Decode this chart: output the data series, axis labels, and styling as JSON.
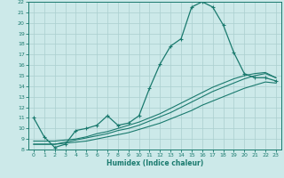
{
  "xlabel": "Humidex (Indice chaleur)",
  "xlim": [
    -0.5,
    23.5
  ],
  "ylim": [
    8,
    22
  ],
  "yticks": [
    8,
    9,
    10,
    11,
    12,
    13,
    14,
    15,
    16,
    17,
    18,
    19,
    20,
    21,
    22
  ],
  "xticks": [
    0,
    1,
    2,
    3,
    4,
    5,
    6,
    7,
    8,
    9,
    10,
    11,
    12,
    13,
    14,
    15,
    16,
    17,
    18,
    19,
    20,
    21,
    22,
    23
  ],
  "bg_color": "#cce9e9",
  "line_color": "#1a7a6e",
  "grid_color": "#aacfcf",
  "line1_x": [
    0,
    1,
    2,
    3,
    4,
    5,
    6,
    7,
    8,
    9,
    10,
    11,
    12,
    13,
    14,
    15,
    16,
    17,
    18,
    19,
    20,
    21,
    22,
    23
  ],
  "line1_y": [
    11.0,
    9.2,
    8.2,
    8.5,
    9.8,
    10.0,
    10.3,
    11.2,
    10.3,
    10.5,
    11.2,
    13.8,
    16.1,
    17.8,
    18.5,
    21.5,
    22.0,
    21.5,
    19.8,
    17.2,
    15.2,
    14.8,
    14.8,
    14.5
  ],
  "line2_x": [
    0,
    1,
    2,
    3,
    4,
    5,
    6,
    7,
    8,
    9,
    10,
    11,
    12,
    13,
    14,
    15,
    16,
    17,
    18,
    19,
    20,
    21,
    22,
    23
  ],
  "line2_y": [
    8.5,
    8.5,
    8.5,
    8.6,
    8.7,
    8.8,
    9.0,
    9.2,
    9.4,
    9.6,
    9.9,
    10.2,
    10.5,
    10.9,
    11.3,
    11.7,
    12.2,
    12.6,
    13.0,
    13.4,
    13.8,
    14.1,
    14.4,
    14.3
  ],
  "line3_x": [
    0,
    1,
    2,
    3,
    4,
    5,
    6,
    7,
    8,
    9,
    10,
    11,
    12,
    13,
    14,
    15,
    16,
    17,
    18,
    19,
    20,
    21,
    22,
    23
  ],
  "line3_y": [
    8.5,
    8.5,
    8.5,
    8.7,
    8.9,
    9.1,
    9.3,
    9.5,
    9.8,
    10.0,
    10.3,
    10.7,
    11.1,
    11.5,
    12.0,
    12.5,
    13.0,
    13.5,
    13.9,
    14.3,
    14.7,
    15.0,
    15.2,
    14.8
  ],
  "line4_x": [
    0,
    1,
    2,
    3,
    4,
    5,
    6,
    7,
    8,
    9,
    10,
    11,
    12,
    13,
    14,
    15,
    16,
    17,
    18,
    19,
    20,
    21,
    22,
    23
  ],
  "line4_y": [
    8.8,
    8.8,
    8.8,
    8.9,
    9.0,
    9.2,
    9.5,
    9.7,
    10.0,
    10.3,
    10.6,
    11.0,
    11.4,
    11.9,
    12.4,
    12.9,
    13.4,
    13.9,
    14.3,
    14.7,
    15.0,
    15.2,
    15.3,
    14.8
  ]
}
